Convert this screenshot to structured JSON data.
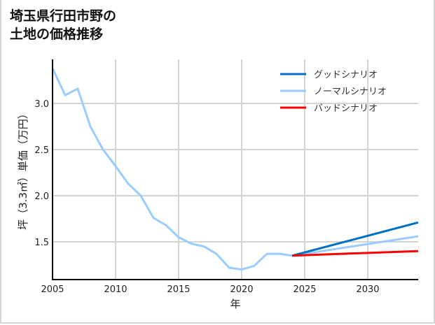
{
  "title": {
    "line1": "埼玉県行田市野の",
    "line2": "土地の価格推移"
  },
  "chart_data": {
    "type": "line",
    "title": "埼玉県行田市野の土地の価格推移",
    "xlabel": "年",
    "ylabel": "坪（3.3㎡）単価（万円）",
    "xlim": [
      2005,
      2034
    ],
    "ylim": [
      1.08,
      3.5
    ],
    "xticks": [
      2005,
      2010,
      2015,
      2020,
      2025,
      2030
    ],
    "yticks": [
      1.5,
      2.0,
      2.5,
      3.0
    ],
    "grid": true,
    "legend_position": "upper right",
    "series": [
      {
        "name": "ノーマルシナリオ",
        "color": "#99ccff",
        "x": [
          2005,
          2006,
          2007,
          2008,
          2009,
          2010,
          2011,
          2012,
          2013,
          2014,
          2015,
          2016,
          2017,
          2018,
          2019,
          2020,
          2021,
          2022,
          2023,
          2024
        ],
        "values": [
          3.38,
          3.09,
          3.16,
          2.75,
          2.5,
          2.32,
          2.13,
          2.0,
          1.76,
          1.68,
          1.55,
          1.48,
          1.45,
          1.37,
          1.22,
          1.2,
          1.24,
          1.37,
          1.37,
          1.35
        ]
      },
      {
        "name": "グッドシナリオ",
        "color": "#0070c0",
        "x": [
          2024,
          2034
        ],
        "values": [
          1.35,
          1.71
        ]
      },
      {
        "name": "ノーマルシナリオ(予測)",
        "color": "#99ccff",
        "x": [
          2024,
          2034
        ],
        "values": [
          1.35,
          1.56
        ]
      },
      {
        "name": "バッドシナリオ",
        "color": "#ff0000",
        "x": [
          2024,
          2034
        ],
        "values": [
          1.35,
          1.4
        ]
      }
    ]
  },
  "legend": {
    "good": {
      "label": "グッドシナリオ",
      "color": "#0070c0"
    },
    "normal": {
      "label": "ノーマルシナリオ",
      "color": "#99ccff"
    },
    "bad": {
      "label": "バッドシナリオ",
      "color": "#ff0000"
    }
  },
  "axes": {
    "xlabel": "年",
    "ylabel": "坪（3.3㎡）単価（万円）",
    "xticks": [
      "2005",
      "2010",
      "2015",
      "2020",
      "2025",
      "2030"
    ],
    "yticks": [
      "1.5",
      "2.0",
      "2.5",
      "3.0"
    ]
  }
}
